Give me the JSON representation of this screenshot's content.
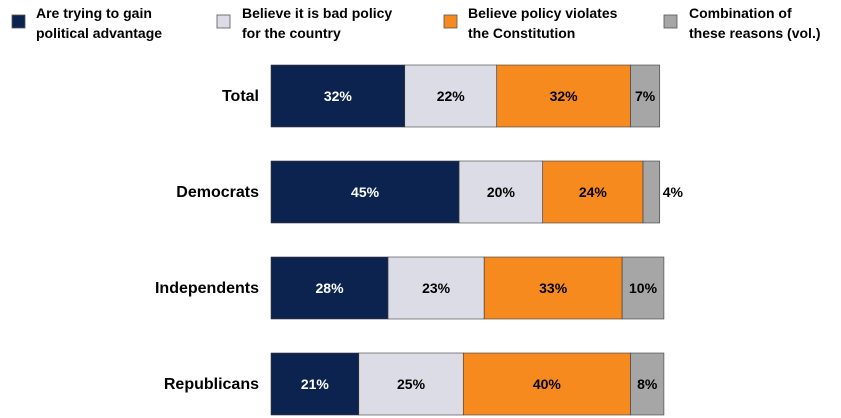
{
  "chart_data": {
    "type": "bar",
    "orientation": "horizontal",
    "stacked": true,
    "categories": [
      "Total",
      "Democrats",
      "Independents",
      "Republicans"
    ],
    "series": [
      {
        "name": "Are trying to gain political advantage",
        "color": "#0c2350",
        "label_color": "#ffffff",
        "values": [
          32,
          45,
          28,
          21
        ],
        "labels": [
          "32%",
          "45%",
          "28%",
          "21%"
        ]
      },
      {
        "name": "Believe it is bad policy for the country",
        "color": "#dcdce6",
        "label_color": "#000000",
        "values": [
          22,
          20,
          23,
          25
        ],
        "labels": [
          "22%",
          "20%",
          "23%",
          "25%"
        ]
      },
      {
        "name": "Believe policy violates the Constitution",
        "color": "#f78a1e",
        "label_color": "#000000",
        "values": [
          32,
          24,
          33,
          40
        ],
        "labels": [
          "32%",
          "24%",
          "33%",
          "40%"
        ]
      },
      {
        "name": "Combination of these reasons (vol.)",
        "color": "#a6a6a6",
        "label_color": "#000000",
        "values": [
          7,
          4,
          10,
          8
        ],
        "labels": [
          "7%",
          "4%",
          "10%",
          "8%"
        ]
      }
    ],
    "legend": {
      "placement": "top",
      "lines": [
        [
          "Are trying to gain",
          "political advantage"
        ],
        [
          "Believe it is bad policy",
          "for the country"
        ],
        [
          "Believe policy violates",
          "the Constitution"
        ],
        [
          "Combination of",
          "these reasons (vol.)"
        ]
      ]
    },
    "xlim": [
      0,
      100
    ],
    "grid": false,
    "title": "",
    "xlabel": "",
    "ylabel": ""
  }
}
